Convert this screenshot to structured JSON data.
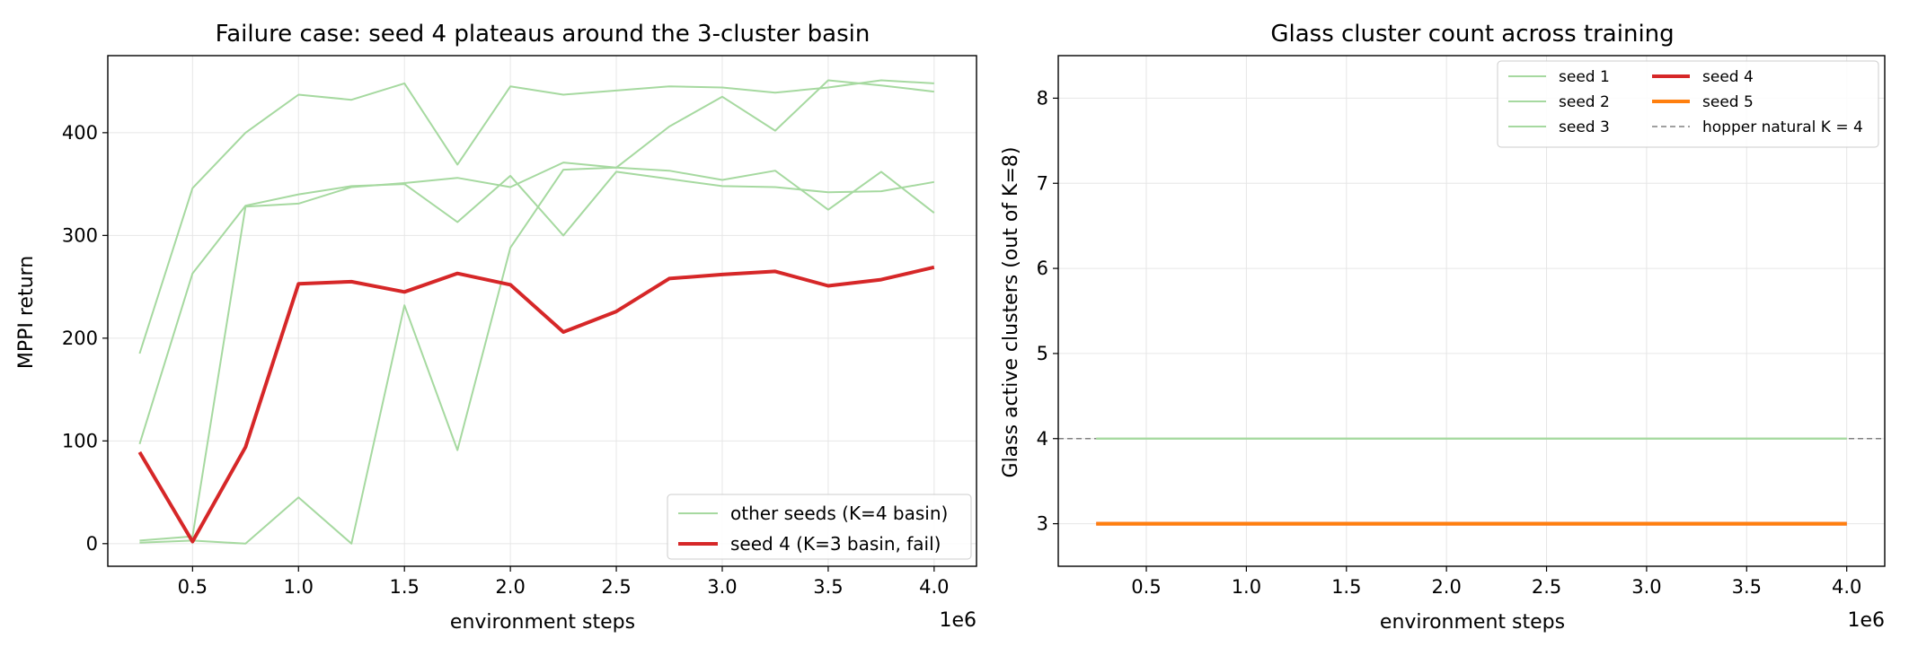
{
  "chart_data": [
    {
      "type": "line",
      "title": "Failure case: seed 4 plateaus around the 3-cluster basin",
      "xlabel": "environment steps",
      "ylabel": "MPPI return",
      "x_offset_label": "1e6",
      "xlim": [
        0.1,
        4.2
      ],
      "ylim": [
        -22,
        475
      ],
      "grid": true,
      "legend_position": "lower-right",
      "xticks": [
        0.5,
        1.0,
        1.5,
        2.0,
        2.5,
        3.0,
        3.5,
        4.0
      ],
      "xtick_labels": [
        "0.5",
        "1.0",
        "1.5",
        "2.0",
        "2.5",
        "3.0",
        "3.5",
        "4.0"
      ],
      "yticks": [
        0,
        100,
        200,
        300,
        400
      ],
      "ytick_labels": [
        "0",
        "100",
        "200",
        "300",
        "400"
      ],
      "x": [
        0.25,
        0.5,
        0.75,
        1.0,
        1.25,
        1.5,
        1.75,
        2.0,
        2.25,
        2.5,
        2.75,
        3.0,
        3.25,
        3.5,
        3.75,
        4.0
      ],
      "legend": [
        {
          "label": "other seeds (K=4 basin)",
          "color": "#a6d9a0",
          "width": 2
        },
        {
          "label": "seed 4 (K=3 basin, fail)",
          "color": "#d62728",
          "width": 4
        }
      ],
      "series": [
        {
          "color": "#a6d9a0",
          "width": 2,
          "values": [
            185,
            346,
            400,
            437,
            432,
            448,
            369,
            445,
            437,
            441,
            445,
            444,
            439,
            444,
            451,
            448
          ]
        },
        {
          "color": "#a6d9a0",
          "width": 2,
          "values": [
            97,
            263,
            329,
            340,
            348,
            350,
            313,
            358,
            300,
            362,
            355,
            348,
            347,
            342,
            343,
            352
          ]
        },
        {
          "color": "#a6d9a0",
          "width": 2,
          "values": [
            3,
            7,
            328,
            331,
            347,
            351,
            356,
            347,
            371,
            366,
            406,
            435,
            402,
            451,
            446,
            440
          ]
        },
        {
          "color": "#a6d9a0",
          "width": 2,
          "values": [
            1,
            3,
            0,
            45,
            0,
            232,
            91,
            288,
            364,
            366,
            363,
            354,
            363,
            325,
            362,
            322
          ]
        },
        {
          "name": "seed 4",
          "color": "#d62728",
          "width": 4,
          "values": [
            89,
            2,
            94,
            253,
            255,
            245,
            263,
            252,
            206,
            226,
            258,
            262,
            265,
            251,
            257,
            269
          ]
        }
      ]
    },
    {
      "type": "line",
      "title": "Glass cluster count across training",
      "xlabel": "environment steps",
      "ylabel": "Glass active clusters (out of K=8)",
      "x_offset_label": "1e6",
      "xlim": [
        0.06,
        4.19
      ],
      "ylim": [
        2.5,
        8.5
      ],
      "grid": true,
      "legend_position": "top-right",
      "xticks": [
        0.5,
        1.0,
        1.5,
        2.0,
        2.5,
        3.0,
        3.5,
        4.0
      ],
      "xtick_labels": [
        "0.5",
        "1.0",
        "1.5",
        "2.0",
        "2.5",
        "3.0",
        "3.5",
        "4.0"
      ],
      "yticks": [
        3,
        4,
        5,
        6,
        7,
        8
      ],
      "ytick_labels": [
        "3",
        "4",
        "5",
        "6",
        "7",
        "8"
      ],
      "x": [
        0.25,
        0.5,
        0.75,
        1.0,
        1.25,
        1.5,
        1.75,
        2.0,
        2.25,
        2.5,
        2.75,
        3.0,
        3.25,
        3.5,
        3.75,
        4.0
      ],
      "legend": [
        {
          "label": "seed 1",
          "color": "#a6d9a0",
          "width": 2,
          "dash": ""
        },
        {
          "label": "seed 2",
          "color": "#a6d9a0",
          "width": 2,
          "dash": ""
        },
        {
          "label": "seed 3",
          "color": "#a6d9a0",
          "width": 2,
          "dash": ""
        },
        {
          "label": "seed 4",
          "color": "#d62728",
          "width": 4,
          "dash": ""
        },
        {
          "label": "seed 5",
          "color": "#ff7f0e",
          "width": 4,
          "dash": ""
        },
        {
          "label": "hopper natural K = 4",
          "color": "#808080",
          "width": 1.5,
          "dash": "6,4"
        }
      ],
      "reference_line": {
        "y": 4,
        "color": "#808080",
        "dash": "6,4"
      },
      "series": [
        {
          "name": "seed 1",
          "color": "#a6d9a0",
          "width": 2,
          "values": [
            4,
            4,
            4,
            4,
            4,
            4,
            4,
            4,
            4,
            4,
            4,
            4,
            4,
            4,
            4,
            4
          ]
        },
        {
          "name": "seed 2",
          "color": "#a6d9a0",
          "width": 2,
          "values": [
            4,
            4,
            4,
            4,
            4,
            4,
            4,
            4,
            4,
            4,
            4,
            4,
            4,
            4,
            4,
            4
          ]
        },
        {
          "name": "seed 3",
          "color": "#a6d9a0",
          "width": 2,
          "values": [
            4,
            4,
            4,
            4,
            4,
            4,
            4,
            4,
            4,
            4,
            4,
            4,
            4,
            4,
            4,
            4
          ]
        },
        {
          "name": "seed 4",
          "color": "#d62728",
          "width": 4,
          "values": [
            3,
            3,
            3,
            3,
            3,
            3,
            3,
            3,
            3,
            3,
            3,
            3,
            3,
            3,
            3,
            3
          ]
        },
        {
          "name": "seed 5",
          "color": "#ff7f0e",
          "width": 4,
          "values": [
            3,
            3,
            3,
            3,
            3,
            3,
            3,
            3,
            3,
            3,
            3,
            3,
            3,
            3,
            3,
            3
          ]
        }
      ]
    }
  ]
}
